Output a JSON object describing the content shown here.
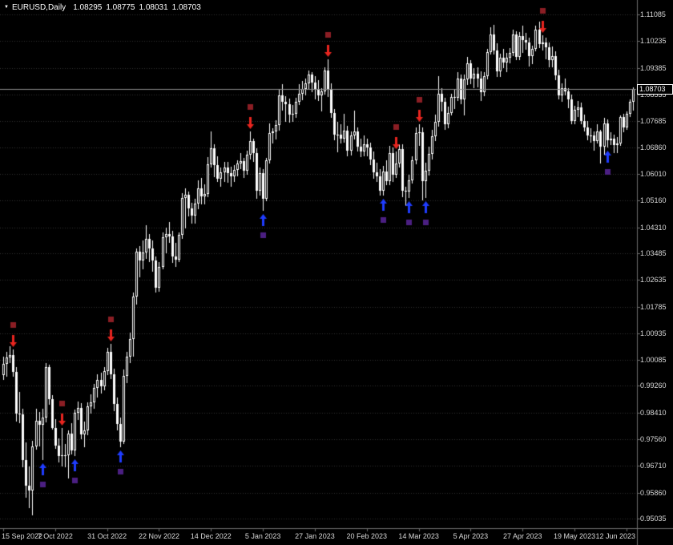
{
  "header": {
    "symbol_period": "EURUSD,Daily",
    "open": "1.08295",
    "high": "1.08775",
    "low": "1.08031",
    "close": "1.08703"
  },
  "colors": {
    "background": "#000000",
    "candle_outline": "#ffffff",
    "bull_fill": "#000000",
    "bear_fill": "#ffffff",
    "grid": "#333333",
    "axis_text": "#d8d8d8",
    "axis_line": "#6e6e6e",
    "current_price_line": "#8c8c8c",
    "sell_arrow": "#e8251f",
    "buy_arrow": "#1f3cff",
    "sell_square": "#8b1e24",
    "buy_square": "#4b1f82"
  },
  "chart_data": {
    "type": "candlestick",
    "title": "EURUSD,Daily",
    "symbol": "EURUSD",
    "timeframe": "Daily",
    "xlabel": "",
    "ylabel": "",
    "grid": "horizontal-dotted-lines",
    "legend": "none",
    "current_price": 1.08703,
    "last_bar": {
      "open": 1.08295,
      "high": 1.08775,
      "low": 1.08031,
      "close": 1.08703
    },
    "ylim": [
      0.9473,
      1.11545
    ],
    "y_axis_ticks": [
      "1.11085",
      "1.10235",
      "1.09385",
      "1.08535",
      "1.07685",
      "1.06860",
      "1.06010",
      "1.05160",
      "1.04310",
      "1.03485",
      "1.02635",
      "1.01785",
      "1.00935",
      "1.00085",
      "0.99260",
      "0.98410",
      "0.97560",
      "0.96710",
      "0.95860",
      "0.95035"
    ],
    "x_axis_ticks": [
      {
        "index": 0,
        "label": "15 Sep 2022"
      },
      {
        "index": 16,
        "label": "7 Oct 2022"
      },
      {
        "index": 32,
        "label": "31 Oct 2022"
      },
      {
        "index": 48,
        "label": "22 Nov 2022"
      },
      {
        "index": 64,
        "label": "14 Dec 2022"
      },
      {
        "index": 80,
        "label": "5 Jan 2023"
      },
      {
        "index": 96,
        "label": "27 Jan 2023"
      },
      {
        "index": 112,
        "label": "20 Feb 2023"
      },
      {
        "index": 128,
        "label": "14 Mar 2023"
      },
      {
        "index": 144,
        "label": "5 Apr 2023"
      },
      {
        "index": 160,
        "label": "27 Apr 2023"
      },
      {
        "index": 176,
        "label": "19 May 2023"
      },
      {
        "index": 192,
        "label": "12 Jun 2023"
      }
    ],
    "signals": [
      {
        "index": 3,
        "type": "sell"
      },
      {
        "index": 12,
        "type": "buy"
      },
      {
        "index": 18,
        "type": "sell"
      },
      {
        "index": 22,
        "type": "buy"
      },
      {
        "index": 33,
        "type": "sell"
      },
      {
        "index": 36,
        "type": "buy"
      },
      {
        "index": 76,
        "type": "sell"
      },
      {
        "index": 80,
        "type": "buy"
      },
      {
        "index": 100,
        "type": "sell"
      },
      {
        "index": 117,
        "type": "buy"
      },
      {
        "index": 121,
        "type": "sell"
      },
      {
        "index": 125,
        "type": "buy"
      },
      {
        "index": 128,
        "type": "sell"
      },
      {
        "index": 130,
        "type": "buy"
      },
      {
        "index": 166,
        "type": "sell"
      },
      {
        "index": 186,
        "type": "buy"
      }
    ],
    "candles": [
      [
        0.996,
        1.0019,
        0.9945,
        0.9997
      ],
      [
        0.9997,
        1.0035,
        0.9955,
        1.0016
      ],
      [
        1.0016,
        1.0051,
        0.9998,
        1.0023
      ],
      [
        1.0023,
        1.0042,
        0.9955,
        0.997
      ],
      [
        0.997,
        0.9985,
        0.9812,
        0.9838
      ],
      [
        0.9838,
        0.9908,
        0.9807,
        0.9835
      ],
      [
        0.9835,
        0.9852,
        0.9668,
        0.969
      ],
      [
        0.969,
        0.9745,
        0.9569,
        0.9609
      ],
      [
        0.9609,
        0.967,
        0.9536,
        0.9594
      ],
      [
        0.9594,
        0.975,
        0.9515,
        0.9734
      ],
      [
        0.9734,
        0.9853,
        0.9722,
        0.9815
      ],
      [
        0.9815,
        0.9844,
        0.9733,
        0.9802
      ],
      [
        0.9802,
        0.9852,
        0.969,
        0.9826
      ],
      [
        0.9826,
        0.9999,
        0.981,
        0.9987
      ],
      [
        0.9987,
        0.9994,
        0.9866,
        0.9885
      ],
      [
        0.9885,
        0.9897,
        0.9787,
        0.9793
      ],
      [
        0.9793,
        0.9819,
        0.9726,
        0.9737
      ],
      [
        0.9737,
        0.9758,
        0.9681,
        0.9702
      ],
      [
        0.9702,
        0.9791,
        0.967,
        0.9705
      ],
      [
        0.9705,
        0.974,
        0.9666,
        0.9704
      ],
      [
        0.9704,
        0.9785,
        0.9632,
        0.9775
      ],
      [
        0.9775,
        0.9808,
        0.9707,
        0.9721
      ],
      [
        0.9721,
        0.9851,
        0.9702,
        0.984
      ],
      [
        0.984,
        0.9876,
        0.9817,
        0.9857
      ],
      [
        0.9857,
        0.9872,
        0.9756,
        0.9772
      ],
      [
        0.9772,
        0.9812,
        0.9731,
        0.9785
      ],
      [
        0.9785,
        0.9874,
        0.977,
        0.9861
      ],
      [
        0.9861,
        0.9899,
        0.9838,
        0.9873
      ],
      [
        0.9873,
        0.9932,
        0.9853,
        0.992
      ],
      [
        0.992,
        0.9962,
        0.989,
        0.9945
      ],
      [
        0.9945,
        0.9968,
        0.9902,
        0.9925
      ],
      [
        0.9925,
        0.9986,
        0.9911,
        0.9972
      ],
      [
        0.9972,
        1.0048,
        0.996,
        1.0035
      ],
      [
        1.0035,
        1.006,
        0.9948,
        0.9962
      ],
      [
        0.9962,
        0.998,
        0.9845,
        0.9868
      ],
      [
        0.9868,
        0.989,
        0.9785,
        0.9805
      ],
      [
        0.9805,
        0.9826,
        0.973,
        0.9749
      ],
      [
        0.9749,
        0.9978,
        0.9742,
        0.9957
      ],
      [
        0.9957,
        1.0034,
        0.9935,
        1.002
      ],
      [
        1.002,
        1.0096,
        0.9998,
        1.0075
      ],
      [
        1.0075,
        1.0222,
        1.002,
        1.021
      ],
      [
        1.021,
        1.0364,
        1.0185,
        1.0354
      ],
      [
        1.0354,
        1.037,
        1.0271,
        1.0325
      ],
      [
        1.0325,
        1.0389,
        1.0298,
        1.035
      ],
      [
        1.035,
        1.0438,
        1.033,
        1.0393
      ],
      [
        1.0393,
        1.041,
        1.032,
        1.0363
      ],
      [
        1.0363,
        1.039,
        1.029,
        1.0325
      ],
      [
        1.0325,
        1.0338,
        1.0222,
        1.0239
      ],
      [
        1.0239,
        1.0319,
        1.0226,
        1.0305
      ],
      [
        1.0305,
        1.0415,
        1.0296,
        1.0399
      ],
      [
        1.0399,
        1.043,
        1.0347,
        1.041
      ],
      [
        1.041,
        1.0448,
        1.0382,
        1.0402
      ],
      [
        1.0402,
        1.042,
        1.0318,
        1.0339
      ],
      [
        1.0339,
        1.0382,
        1.0305,
        1.0328
      ],
      [
        1.0328,
        1.0415,
        1.0319,
        1.0406
      ],
      [
        1.0406,
        1.0539,
        1.0394,
        1.0525
      ],
      [
        1.0525,
        1.0555,
        1.0428,
        1.0535
      ],
      [
        1.0535,
        1.0545,
        1.0466,
        1.049
      ],
      [
        1.049,
        1.0509,
        1.0443,
        1.0467
      ],
      [
        1.0467,
        1.0521,
        1.0442,
        1.0507
      ],
      [
        1.0507,
        1.058,
        1.0489,
        1.0556
      ],
      [
        1.0556,
        1.0589,
        1.0504,
        1.053
      ],
      [
        1.053,
        1.0568,
        1.0503,
        1.0537
      ],
      [
        1.0537,
        1.0654,
        1.0528,
        1.0632
      ],
      [
        1.0632,
        1.0737,
        1.0621,
        1.0683
      ],
      [
        1.0683,
        1.0696,
        1.0591,
        1.0628
      ],
      [
        1.0628,
        1.0658,
        1.0575,
        1.0585
      ],
      [
        1.0585,
        1.0622,
        1.0559,
        1.0607
      ],
      [
        1.0607,
        1.0638,
        1.0576,
        1.0622
      ],
      [
        1.0622,
        1.064,
        1.0572,
        1.0604
      ],
      [
        1.0604,
        1.0625,
        1.0561,
        1.0594
      ],
      [
        1.0594,
        1.0628,
        1.0575,
        1.0613
      ],
      [
        1.0613,
        1.0645,
        1.0593,
        1.0635
      ],
      [
        1.0635,
        1.0668,
        1.0616,
        1.0641
      ],
      [
        1.0641,
        1.0651,
        1.0588,
        1.061
      ],
      [
        1.061,
        1.0675,
        1.0598,
        1.0661
      ],
      [
        1.0661,
        1.0735,
        1.0648,
        1.0705
      ],
      [
        1.0705,
        1.0713,
        1.0638,
        1.0668
      ],
      [
        1.0668,
        1.0683,
        1.0522,
        1.0546
      ],
      [
        1.0546,
        1.0621,
        1.0531,
        1.0603
      ],
      [
        1.0603,
        1.0617,
        1.0483,
        1.0521
      ],
      [
        1.0521,
        1.0652,
        1.0513,
        1.0644
      ],
      [
        1.0644,
        1.0761,
        1.0634,
        1.073
      ],
      [
        1.073,
        1.0747,
        1.0699,
        1.0735
      ],
      [
        1.0735,
        1.0773,
        1.0711,
        1.0756
      ],
      [
        1.0756,
        1.0868,
        1.0739,
        1.0852
      ],
      [
        1.0852,
        1.0887,
        1.0802,
        1.083
      ],
      [
        1.083,
        1.0849,
        1.0766,
        1.0822
      ],
      [
        1.0822,
        1.0841,
        1.0764,
        1.0789
      ],
      [
        1.0789,
        1.082,
        1.0767,
        1.0793
      ],
      [
        1.0793,
        1.0843,
        1.078,
        1.0831
      ],
      [
        1.0831,
        1.0886,
        1.0821,
        1.0856
      ],
      [
        1.0856,
        1.0898,
        1.0836,
        1.0871
      ],
      [
        1.0871,
        1.0905,
        1.0851,
        1.0888
      ],
      [
        1.0888,
        1.0929,
        1.0871,
        1.0916
      ],
      [
        1.0916,
        1.0926,
        1.0861,
        1.0892
      ],
      [
        1.0892,
        1.0911,
        1.0838,
        1.0868
      ],
      [
        1.0868,
        1.0899,
        1.0834,
        1.0852
      ],
      [
        1.0852,
        1.0874,
        1.0801,
        1.0863
      ],
      [
        1.0863,
        1.094,
        1.0853,
        1.093
      ],
      [
        1.093,
        1.0965,
        1.0845,
        1.087
      ],
      [
        1.087,
        1.0888,
        1.078,
        1.0795
      ],
      [
        1.0795,
        1.0807,
        1.0709,
        1.0726
      ],
      [
        1.0726,
        1.0766,
        1.067,
        1.0727
      ],
      [
        1.0727,
        1.076,
        1.0699,
        1.0712
      ],
      [
        1.0712,
        1.0791,
        1.0701,
        1.0739
      ],
      [
        1.0739,
        1.0754,
        1.0656,
        1.0676
      ],
      [
        1.0676,
        1.0735,
        1.066,
        1.0723
      ],
      [
        1.0723,
        1.0803,
        1.071,
        1.0737
      ],
      [
        1.0737,
        1.0749,
        1.0671,
        1.0687
      ],
      [
        1.0687,
        1.0713,
        1.0655,
        1.0673
      ],
      [
        1.0673,
        1.0723,
        1.0658,
        1.0694
      ],
      [
        1.0694,
        1.0713,
        1.0658,
        1.0686
      ],
      [
        1.0686,
        1.07,
        1.063,
        1.0648
      ],
      [
        1.0648,
        1.0672,
        1.0585,
        1.0605
      ],
      [
        1.0605,
        1.0637,
        1.0575,
        1.0594
      ],
      [
        1.0594,
        1.0615,
        1.0533,
        1.0546
      ],
      [
        1.0546,
        1.0626,
        1.0532,
        1.0609
      ],
      [
        1.0609,
        1.0645,
        1.0564,
        1.0577
      ],
      [
        1.0577,
        1.0691,
        1.0565,
        1.0666
      ],
      [
        1.0666,
        1.0684,
        1.0575,
        1.0598
      ],
      [
        1.0598,
        1.0672,
        1.0589,
        1.0635
      ],
      [
        1.0635,
        1.0694,
        1.0621,
        1.068
      ],
      [
        1.068,
        1.0695,
        1.0528,
        1.0548
      ],
      [
        1.0548,
        1.056,
        1.0498,
        1.0545
      ],
      [
        1.0545,
        1.0599,
        1.0525,
        1.0581
      ],
      [
        1.0581,
        1.0658,
        1.057,
        1.0643
      ],
      [
        1.0643,
        1.0749,
        1.0631,
        1.0731
      ],
      [
        1.0731,
        1.0758,
        1.069,
        1.0733
      ],
      [
        1.0733,
        1.0748,
        1.0516,
        1.0577
      ],
      [
        1.0577,
        1.0636,
        1.0525,
        1.0611
      ],
      [
        1.0611,
        1.0687,
        1.0595,
        1.0665
      ],
      [
        1.0665,
        1.074,
        1.0648,
        1.072
      ],
      [
        1.072,
        1.0789,
        1.0705,
        1.0767
      ],
      [
        1.0767,
        1.0912,
        1.0752,
        1.0856
      ],
      [
        1.0856,
        1.0873,
        1.0801,
        1.083
      ],
      [
        1.083,
        1.0843,
        1.0742,
        1.076
      ],
      [
        1.076,
        1.0815,
        1.0745,
        1.0796
      ],
      [
        1.0796,
        1.0857,
        1.0788,
        1.0845
      ],
      [
        1.0845,
        1.0869,
        1.0808,
        1.0843
      ],
      [
        1.0843,
        1.0926,
        1.0832,
        1.0905
      ],
      [
        1.0905,
        1.0916,
        1.0824,
        1.0839
      ],
      [
        1.0839,
        1.0916,
        1.0788,
        1.0902
      ],
      [
        1.0902,
        1.0973,
        1.0885,
        1.0953
      ],
      [
        1.0953,
        1.0963,
        1.0886,
        1.0905
      ],
      [
        1.0905,
        1.0938,
        1.0875,
        1.0921
      ],
      [
        1.0921,
        1.0939,
        1.0877,
        1.0904
      ],
      [
        1.0904,
        1.0928,
        1.0832,
        1.0861
      ],
      [
        1.0861,
        1.0925,
        1.0849,
        1.0912
      ],
      [
        1.0912,
        1.1,
        1.0902,
        1.0988
      ],
      [
        1.0988,
        1.1068,
        1.098,
        1.1046
      ],
      [
        1.1046,
        1.1076,
        1.0982,
        1.0994
      ],
      [
        1.0994,
        1.1016,
        1.0909,
        1.0928
      ],
      [
        1.0928,
        1.0983,
        1.091,
        1.0972
      ],
      [
        1.0972,
        1.0998,
        1.0938,
        1.0955
      ],
      [
        1.0955,
        1.0985,
        1.0925,
        1.0971
      ],
      [
        1.0971,
        1.1001,
        1.0954,
        1.0987
      ],
      [
        1.0987,
        1.106,
        1.0977,
        1.1046
      ],
      [
        1.1046,
        1.1055,
        1.0964,
        1.0973
      ],
      [
        1.0973,
        1.1052,
        1.0962,
        1.104
      ],
      [
        1.104,
        1.1074,
        1.0986,
        1.1027
      ],
      [
        1.1027,
        1.1049,
        1.0996,
        1.1018
      ],
      [
        1.1018,
        1.1034,
        1.0942,
        1.0977
      ],
      [
        1.0977,
        1.1009,
        1.0951,
        1.1
      ],
      [
        1.1,
        1.1072,
        1.099,
        1.1059
      ],
      [
        1.1059,
        1.1085,
        1.1002,
        1.1015
      ],
      [
        1.1015,
        1.1041,
        1.0993,
        1.1019
      ],
      [
        1.1019,
        1.1035,
        1.0965,
        1.1004
      ],
      [
        1.1004,
        1.1019,
        1.0941,
        1.0962
      ],
      [
        1.0962,
        1.1006,
        1.094,
        1.0977
      ],
      [
        1.0977,
        1.0992,
        1.0899,
        1.0915
      ],
      [
        1.0915,
        1.0932,
        1.0839,
        1.085
      ],
      [
        1.085,
        1.089,
        1.0831,
        1.0873
      ],
      [
        1.0873,
        1.0904,
        1.085,
        1.0863
      ],
      [
        1.0863,
        1.0874,
        1.081,
        1.0837
      ],
      [
        1.0837,
        1.0853,
        1.076,
        1.077
      ],
      [
        1.077,
        1.0818,
        1.0759,
        1.0805
      ],
      [
        1.0805,
        1.0832,
        1.0783,
        1.0812
      ],
      [
        1.0812,
        1.0827,
        1.0759,
        1.077
      ],
      [
        1.077,
        1.0789,
        1.0735,
        1.075
      ],
      [
        1.075,
        1.0768,
        1.0707,
        1.0723
      ],
      [
        1.0723,
        1.0746,
        1.0701,
        1.0724
      ],
      [
        1.0724,
        1.0736,
        1.0674,
        1.0706
      ],
      [
        1.0706,
        1.076,
        1.0698,
        1.0735
      ],
      [
        1.0735,
        1.0742,
        1.0635,
        1.0688
      ],
      [
        1.0688,
        1.0779,
        1.0662,
        1.0762
      ],
      [
        1.0762,
        1.0774,
        1.0685,
        1.0708
      ],
      [
        1.0708,
        1.0733,
        1.0693,
        1.0713
      ],
      [
        1.0713,
        1.0726,
        1.0667,
        1.0693
      ],
      [
        1.0693,
        1.0719,
        1.0667,
        1.0699
      ],
      [
        1.0699,
        1.0787,
        1.0691,
        1.0781
      ],
      [
        1.0781,
        1.0793,
        1.0733,
        1.0749
      ],
      [
        1.0749,
        1.0801,
        1.0741,
        1.0791
      ],
      [
        1.0791,
        1.0838,
        1.0782,
        1.083
      ],
      [
        1.08295,
        1.08775,
        1.08031,
        1.08703
      ]
    ]
  }
}
